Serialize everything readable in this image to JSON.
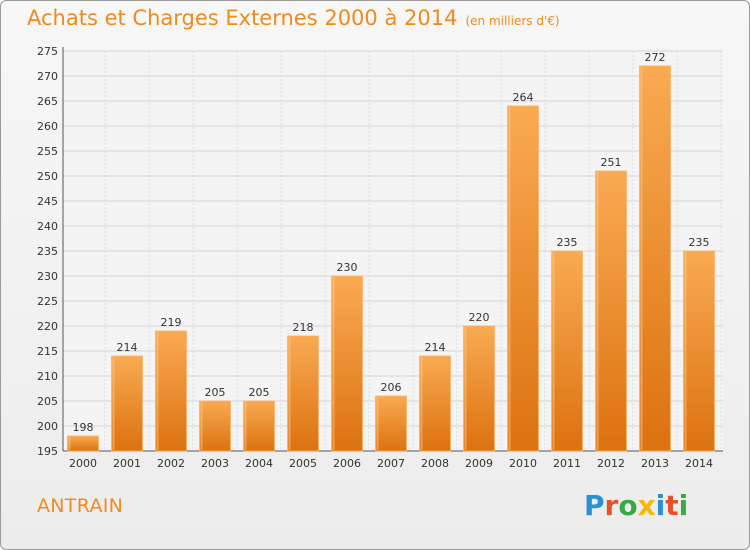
{
  "title": "Achats et Charges Externes 2000 à 2014",
  "subtitle": "(en milliers d'€)",
  "place": "ANTRAIN",
  "logo": {
    "letters": [
      {
        "ch": "P",
        "color": "#2a8fd6"
      },
      {
        "ch": "r",
        "color": "#e8502a"
      },
      {
        "ch": "o",
        "color": "#3aa843"
      },
      {
        "ch": "x",
        "color": "#f2b90c"
      },
      {
        "ch": "i",
        "color": "#2a8fd6"
      },
      {
        "ch": "t",
        "color": "#e8502a"
      },
      {
        "ch": "i",
        "color": "#3aa843"
      }
    ]
  },
  "colors": {
    "bar_light": "#f7a54e",
    "bar_dark": "#dd7412",
    "accent": "#f08a1c"
  },
  "chart_data": {
    "type": "bar",
    "categories": [
      "2000",
      "2001",
      "2002",
      "2003",
      "2004",
      "2005",
      "2006",
      "2007",
      "2008",
      "2009",
      "2010",
      "2011",
      "2012",
      "2013",
      "2014"
    ],
    "values": [
      198,
      214,
      219,
      205,
      205,
      218,
      230,
      206,
      214,
      220,
      264,
      235,
      251,
      272,
      235
    ],
    "ylim": [
      195,
      275
    ],
    "yticks": [
      195,
      200,
      205,
      210,
      215,
      220,
      225,
      230,
      235,
      240,
      245,
      250,
      255,
      260,
      265,
      270,
      275
    ],
    "grid": true
  }
}
